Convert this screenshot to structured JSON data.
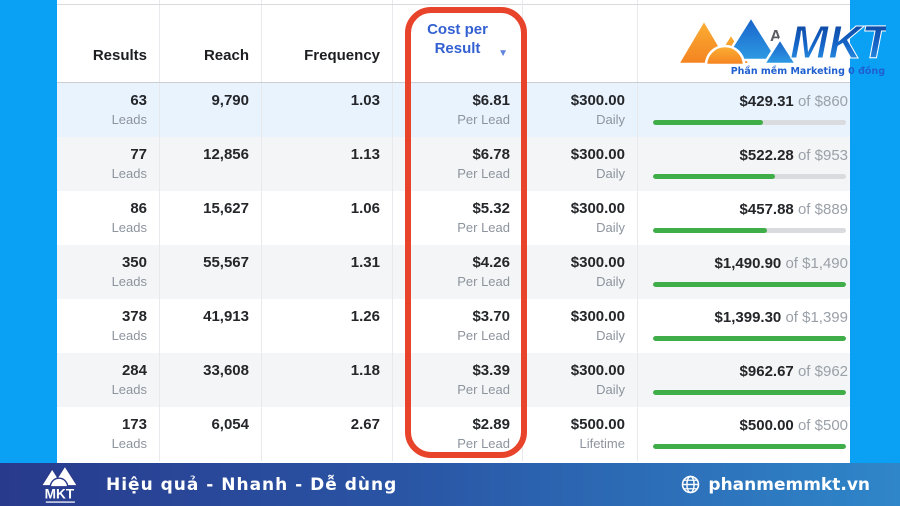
{
  "table": {
    "header": {
      "results": "Results",
      "reach": "Reach",
      "frequency": "Frequency",
      "cost_per_line1": "Cost per",
      "cost_per_line2": "Result",
      "sort_caret": "▼",
      "amount_header_partial": "A"
    },
    "rows": [
      {
        "highlighted": true,
        "results": "63",
        "results_sub": "Leads",
        "reach": "9,790",
        "frequency": "1.03",
        "cost_per_result": "$6.81",
        "cost_sub": "Per Lead",
        "budget": "$300.00",
        "budget_sub": "Daily",
        "spent": "$429.31",
        "spent_of": "of $860",
        "progress_pct": 57
      },
      {
        "highlighted": false,
        "results": "77",
        "results_sub": "Leads",
        "reach": "12,856",
        "frequency": "1.13",
        "cost_per_result": "$6.78",
        "cost_sub": "Per Lead",
        "budget": "$300.00",
        "budget_sub": "Daily",
        "spent": "$522.28",
        "spent_of": "of $953",
        "progress_pct": 63
      },
      {
        "highlighted": false,
        "results": "86",
        "results_sub": "Leads",
        "reach": "15,627",
        "frequency": "1.06",
        "cost_per_result": "$5.32",
        "cost_sub": "Per Lead",
        "budget": "$300.00",
        "budget_sub": "Daily",
        "spent": "$457.88",
        "spent_of": "of $889",
        "progress_pct": 59
      },
      {
        "highlighted": false,
        "results": "350",
        "results_sub": "Leads",
        "reach": "55,567",
        "frequency": "1.31",
        "cost_per_result": "$4.26",
        "cost_sub": "Per Lead",
        "budget": "$300.00",
        "budget_sub": "Daily",
        "spent": "$1,490.90",
        "spent_of": "of $1,490",
        "progress_pct": 100
      },
      {
        "highlighted": false,
        "results": "378",
        "results_sub": "Leads",
        "reach": "41,913",
        "frequency": "1.26",
        "cost_per_result": "$3.70",
        "cost_sub": "Per Lead",
        "budget": "$300.00",
        "budget_sub": "Daily",
        "spent": "$1,399.30",
        "spent_of": "of $1,399",
        "progress_pct": 100
      },
      {
        "highlighted": false,
        "results": "284",
        "results_sub": "Leads",
        "reach": "33,608",
        "frequency": "1.18",
        "cost_per_result": "$3.39",
        "cost_sub": "Per Lead",
        "budget": "$300.00",
        "budget_sub": "Daily",
        "spent": "$962.67",
        "spent_of": "of $962",
        "progress_pct": 100
      },
      {
        "highlighted": false,
        "results": "173",
        "results_sub": "Leads",
        "reach": "6,054",
        "frequency": "2.67",
        "cost_per_result": "$2.89",
        "cost_sub": "Per Lead",
        "budget": "$500.00",
        "budget_sub": "Lifetime",
        "spent": "$500.00",
        "spent_of": "of $500",
        "progress_pct": 100
      }
    ]
  },
  "top_logo": {
    "brand": "MKT",
    "tagline": "Phần mềm Marketing 0 đồng"
  },
  "footer": {
    "brand": "MKT",
    "slogan": "Hiệu quả - Nhanh - Dễ dùng",
    "website": "phanmemmkt.vn"
  },
  "colors": {
    "frame_blue": "#0aa1f5",
    "annotation_red": "#e8432b",
    "progress_green": "#3fae49",
    "sorted_header_blue": "#3461d1",
    "highlight_row": "#e9f3fd",
    "footer_gradient_start": "#283a8c",
    "footer_gradient_end": "#2f86c9"
  }
}
